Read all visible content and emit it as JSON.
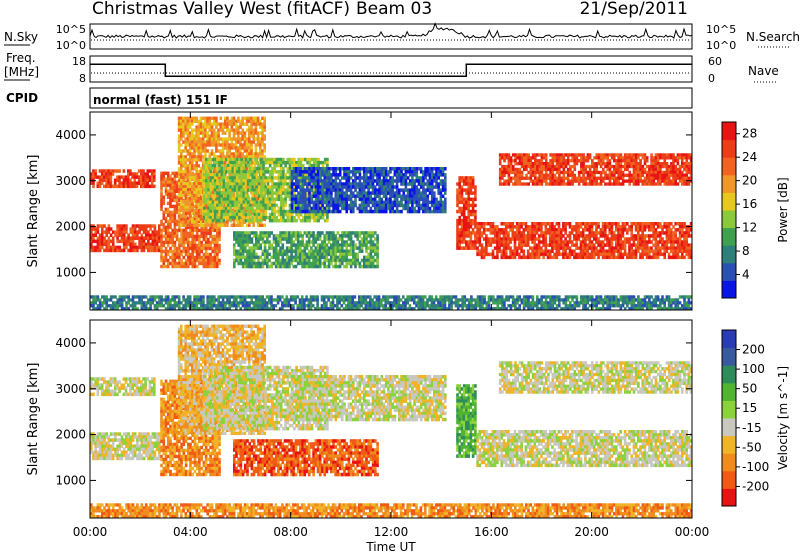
{
  "header": {
    "station": "Christmas Valley West (fitACF)",
    "beam": "Beam 03",
    "date": "21/Sep/2011"
  },
  "top_panels": {
    "nsky_label": "N.Sky",
    "nsky_ticks": [
      "10^5",
      "10^0"
    ],
    "nsearch_label": "N.Search",
    "nsearch_ticks": [
      "10^5",
      "10^0"
    ],
    "freq_label_1": "Freq.",
    "freq_label_2": "[MHz]",
    "freq_ticks": [
      "18",
      "8"
    ],
    "nave_label": "Nave",
    "nave_ticks": [
      "60",
      "0"
    ],
    "cpid_label": "CPID",
    "cpid_text": "normal (fast) 151 IF"
  },
  "chart_data": [
    {
      "type": "heatmap",
      "name": "power",
      "ylabel": "Slant Range [km]",
      "xlabel": "",
      "xlim": [
        0,
        24
      ],
      "ylim": [
        180,
        4500
      ],
      "y_ticks": [
        "1000",
        "2000",
        "3000",
        "4000"
      ],
      "x_ticks": [
        "00:00",
        "04:00",
        "08:00",
        "12:00",
        "16:00",
        "20:00",
        "00:00"
      ],
      "colorbar": {
        "label": "Power [dB]",
        "ticks": [
          "4",
          "8",
          "12",
          "16",
          "20",
          "24",
          "28"
        ],
        "colors": [
          "#0a14e6",
          "#2a4fb5",
          "#2e7f7a",
          "#3fa050",
          "#8cc83c",
          "#e6c81e",
          "#f0962a",
          "#f06420",
          "#ec3c18",
          "#e81414"
        ]
      },
      "bands": [
        {
          "t": [
            0.0,
            2.8
          ],
          "range": [
            1450,
            2050
          ],
          "level": 28
        },
        {
          "t": [
            0.0,
            2.6
          ],
          "range": [
            2850,
            3250
          ],
          "level": 26
        },
        {
          "t": [
            2.8,
            5.2
          ],
          "range": [
            1100,
            3200
          ],
          "level": 25
        },
        {
          "t": [
            3.5,
            7.0
          ],
          "range": [
            2000,
            4400
          ],
          "level": 20
        },
        {
          "t": [
            4.5,
            9.5
          ],
          "range": [
            2100,
            3500
          ],
          "level": 14
        },
        {
          "t": [
            5.7,
            11.5
          ],
          "range": [
            1100,
            1900
          ],
          "level": 12
        },
        {
          "t": [
            8.0,
            14.2
          ],
          "range": [
            2300,
            3300
          ],
          "level": 6
        },
        {
          "t": [
            0.0,
            24.0
          ],
          "range": [
            180,
            500
          ],
          "level": 8
        },
        {
          "t": [
            14.6,
            15.4
          ],
          "range": [
            1500,
            3100
          ],
          "level": 26
        },
        {
          "t": [
            15.4,
            24.0
          ],
          "range": [
            1300,
            2100
          ],
          "level": 28
        },
        {
          "t": [
            16.3,
            24.0
          ],
          "range": [
            2900,
            3600
          ],
          "level": 26
        }
      ]
    },
    {
      "type": "heatmap",
      "name": "velocity",
      "ylabel": "Slant Range [km]",
      "xlabel": "Time UT",
      "xlim": [
        0,
        24
      ],
      "ylim": [
        180,
        4500
      ],
      "y_ticks": [
        "1000",
        "2000",
        "3000",
        "4000"
      ],
      "x_ticks": [
        "00:00",
        "04:00",
        "08:00",
        "12:00",
        "16:00",
        "20:00",
        "00:00"
      ],
      "colorbar": {
        "label": "Velocity [m s^-1]",
        "ticks": [
          "200",
          "100",
          "50",
          "15",
          "-15",
          "-50",
          "-100",
          "-200"
        ],
        "colors": [
          "#2a3cb4",
          "#3a5aa0",
          "#2e8c5a",
          "#50b432",
          "#8cd23c",
          "#c8c8c0",
          "#f0b428",
          "#f08c1e",
          "#f05a14",
          "#e81414"
        ]
      },
      "bands": [
        {
          "t": [
            0.0,
            2.8
          ],
          "range": [
            1450,
            2050
          ],
          "level": 0
        },
        {
          "t": [
            0.0,
            2.6
          ],
          "range": [
            2850,
            3250
          ],
          "level": 0
        },
        {
          "t": [
            2.8,
            5.2
          ],
          "range": [
            1100,
            3200
          ],
          "level": -40
        },
        {
          "t": [
            3.5,
            7.0
          ],
          "range": [
            2000,
            4400
          ],
          "level": -30
        },
        {
          "t": [
            4.5,
            9.5
          ],
          "range": [
            2100,
            3500
          ],
          "level": 0
        },
        {
          "t": [
            5.7,
            11.5
          ],
          "range": [
            1100,
            1900
          ],
          "level": -60
        },
        {
          "t": [
            8.0,
            14.2
          ],
          "range": [
            2300,
            3300
          ],
          "level": -10
        },
        {
          "t": [
            0.0,
            24.0
          ],
          "range": [
            180,
            500
          ],
          "level": -40
        },
        {
          "t": [
            14.6,
            15.4
          ],
          "range": [
            1500,
            3100
          ],
          "level": 40
        },
        {
          "t": [
            15.4,
            24.0
          ],
          "range": [
            1300,
            2100
          ],
          "level": 0
        },
        {
          "t": [
            16.3,
            24.0
          ],
          "range": [
            2900,
            3600
          ],
          "level": 0
        }
      ]
    }
  ],
  "freq_series": [
    {
      "t": [
        0.0,
        3.0
      ],
      "mhz": 15
    },
    {
      "t": [
        3.0,
        15.0
      ],
      "mhz": 10
    },
    {
      "t": [
        15.0,
        24.0
      ],
      "mhz": 15
    }
  ]
}
